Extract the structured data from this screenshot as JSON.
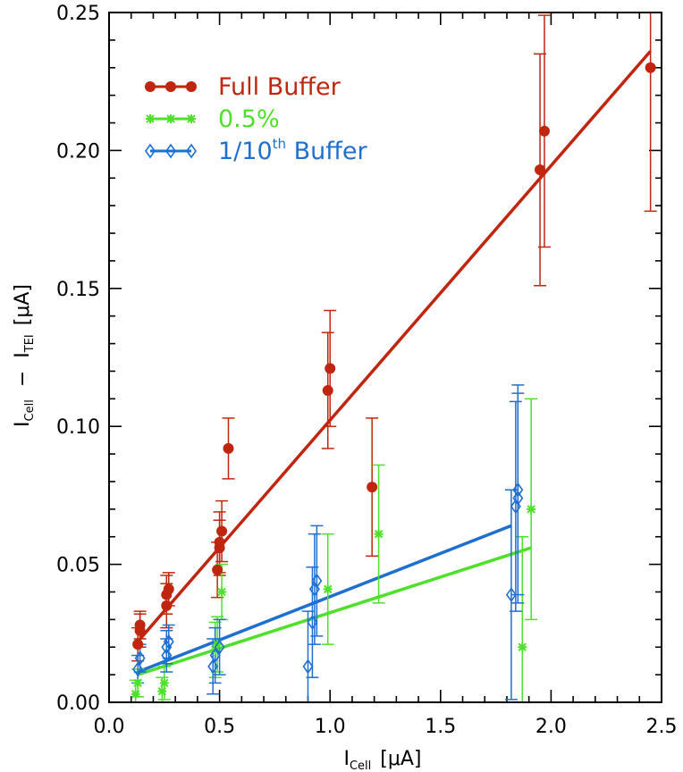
{
  "chart_data": {
    "type": "scatter",
    "xlabel_main": "I",
    "xlabel_sub": "Cell",
    "xlabel_unit": "[μA]",
    "ylabel_main_1": "I",
    "ylabel_sub_1": "Cell",
    "ylabel_minus": "−",
    "ylabel_main_2": "I",
    "ylabel_sub_2": "TEI",
    "ylabel_unit": "[μA]",
    "xlim": [
      0.0,
      2.5
    ],
    "ylim": [
      0.0,
      0.25
    ],
    "x_ticks": [
      "0.0",
      "0.5",
      "1.0",
      "1.5",
      "2.0",
      "2.5"
    ],
    "y_ticks": [
      "0.00",
      "0.05",
      "0.10",
      "0.15",
      "0.20",
      "0.25"
    ],
    "legend_placement": "top-left",
    "series": [
      {
        "name": "Full Buffer",
        "name_prefix": "Full Buffer",
        "name_sup": "",
        "name_suffix": "",
        "color": "#c0260f",
        "marker": "circle",
        "fit": [
          [
            0.13,
            0.022
          ],
          [
            2.45,
            0.236
          ]
        ],
        "points": [
          {
            "x": 0.13,
            "y": 0.021,
            "err": 0.006
          },
          {
            "x": 0.14,
            "y": 0.026,
            "err": 0.006
          },
          {
            "x": 0.14,
            "y": 0.028,
            "err": 0.005
          },
          {
            "x": 0.26,
            "y": 0.035,
            "err": 0.008
          },
          {
            "x": 0.26,
            "y": 0.039,
            "err": 0.007
          },
          {
            "x": 0.27,
            "y": 0.041,
            "err": 0.006
          },
          {
            "x": 0.49,
            "y": 0.048,
            "err": 0.01
          },
          {
            "x": 0.5,
            "y": 0.056,
            "err": 0.01
          },
          {
            "x": 0.5,
            "y": 0.058,
            "err": 0.011
          },
          {
            "x": 0.51,
            "y": 0.062,
            "err": 0.011
          },
          {
            "x": 0.54,
            "y": 0.092,
            "err": 0.011
          },
          {
            "x": 0.99,
            "y": 0.113,
            "err": 0.021
          },
          {
            "x": 1.0,
            "y": 0.121,
            "err": 0.021
          },
          {
            "x": 1.19,
            "y": 0.078,
            "err": 0.025
          },
          {
            "x": 1.95,
            "y": 0.193,
            "err": 0.042
          },
          {
            "x": 1.97,
            "y": 0.207,
            "err": 0.042
          },
          {
            "x": 2.45,
            "y": 0.23,
            "err": 0.052
          }
        ]
      },
      {
        "name": "0.5%",
        "name_prefix": "0.5%",
        "name_sup": "",
        "name_suffix": "",
        "color": "#4ee02a",
        "marker": "asterisk",
        "fit": [
          [
            0.13,
            0.01
          ],
          [
            1.91,
            0.056
          ]
        ],
        "points": [
          {
            "x": 0.12,
            "y": 0.003,
            "err": 0.005
          },
          {
            "x": 0.13,
            "y": 0.007,
            "err": 0.005
          },
          {
            "x": 0.24,
            "y": 0.004,
            "err": 0.005
          },
          {
            "x": 0.25,
            "y": 0.007,
            "err": 0.006
          },
          {
            "x": 0.48,
            "y": 0.019,
            "err": 0.01
          },
          {
            "x": 0.49,
            "y": 0.021,
            "err": 0.01
          },
          {
            "x": 0.51,
            "y": 0.04,
            "err": 0.01
          },
          {
            "x": 0.99,
            "y": 0.041,
            "err": 0.02
          },
          {
            "x": 1.22,
            "y": 0.061,
            "err": 0.025
          },
          {
            "x": 1.87,
            "y": 0.02,
            "err": 0.04
          },
          {
            "x": 1.91,
            "y": 0.07,
            "err": 0.04
          }
        ]
      },
      {
        "name": "1/10th Buffer",
        "name_prefix": "1/10",
        "name_sup": "th",
        "name_suffix": " Buffer",
        "color": "#1e6fd0",
        "marker": "diamond",
        "fit": [
          [
            0.13,
            0.011
          ],
          [
            1.82,
            0.064
          ]
        ],
        "points": [
          {
            "x": 0.13,
            "y": 0.012,
            "err": 0.005
          },
          {
            "x": 0.14,
            "y": 0.016,
            "err": 0.005
          },
          {
            "x": 0.26,
            "y": 0.017,
            "err": 0.006
          },
          {
            "x": 0.26,
            "y": 0.02,
            "err": 0.006
          },
          {
            "x": 0.27,
            "y": 0.022,
            "err": 0.006
          },
          {
            "x": 0.47,
            "y": 0.013,
            "err": 0.01
          },
          {
            "x": 0.48,
            "y": 0.017,
            "err": 0.01
          },
          {
            "x": 0.5,
            "y": 0.02,
            "err": 0.01
          },
          {
            "x": 0.9,
            "y": 0.013,
            "err": 0.02
          },
          {
            "x": 0.92,
            "y": 0.029,
            "err": 0.02
          },
          {
            "x": 0.93,
            "y": 0.041,
            "err": 0.02
          },
          {
            "x": 0.94,
            "y": 0.044,
            "err": 0.02
          },
          {
            "x": 1.82,
            "y": 0.039,
            "err": 0.038
          },
          {
            "x": 1.84,
            "y": 0.071,
            "err": 0.038
          },
          {
            "x": 1.85,
            "y": 0.074,
            "err": 0.038
          },
          {
            "x": 1.85,
            "y": 0.077,
            "err": 0.038
          }
        ]
      }
    ]
  }
}
